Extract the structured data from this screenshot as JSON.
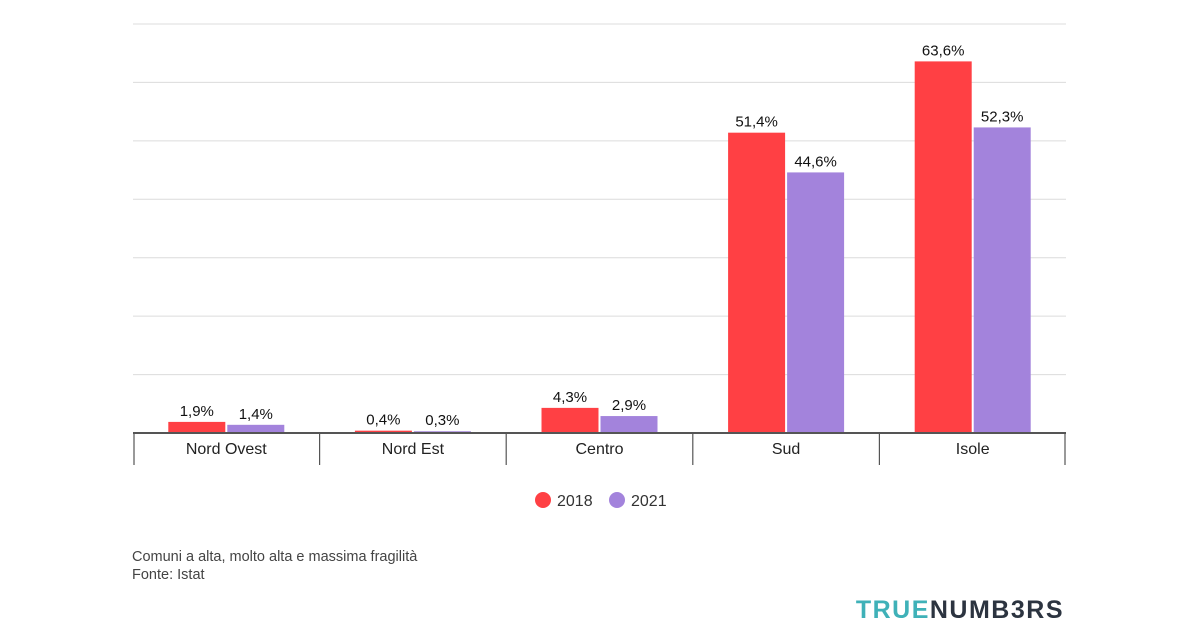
{
  "chart_data": {
    "type": "bar",
    "title": "",
    "xlabel": "",
    "ylabel": "",
    "ylim": [
      0,
      70
    ],
    "grid": true,
    "legend_position": "bottom-center",
    "categories": [
      "Nord Ovest",
      "Nord Est",
      "Centro",
      "Sud",
      "Isole"
    ],
    "series": [
      {
        "name": "2018",
        "color": "#ff4044",
        "values": [
          1.9,
          0.4,
          4.3,
          51.4,
          63.6
        ],
        "labels": [
          "1,9%",
          "0,4%",
          "4,3%",
          "51,4%",
          "63,6%"
        ]
      },
      {
        "name": "2021",
        "color": "#a383dc",
        "values": [
          1.4,
          0.3,
          2.9,
          44.6,
          52.3
        ],
        "labels": [
          "1,4%",
          "0,3%",
          "2,9%",
          "44,6%",
          "52,3%"
        ]
      }
    ]
  },
  "footer": {
    "note": "Comuni a alta, molto alta e massima fragilità",
    "source": "Fonte: Istat"
  },
  "brand": {
    "part1": "TRUE",
    "part2": "NUMB3RS"
  }
}
